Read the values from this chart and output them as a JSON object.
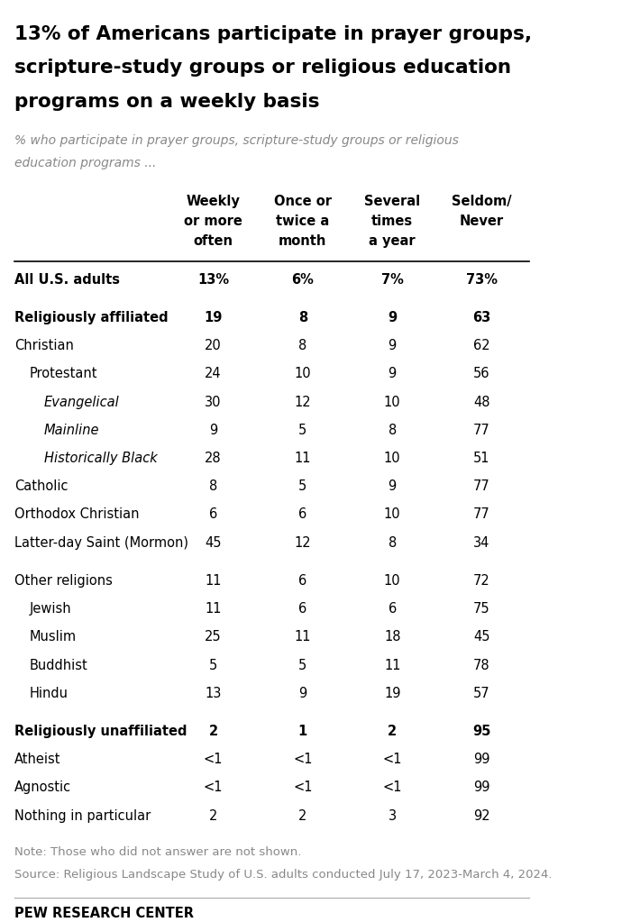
{
  "title": "13% of Americans participate in prayer groups,\nscripture-study groups or religious education\nprograms on a weekly basis",
  "subtitle": "% who participate in prayer groups, scripture-study groups or religious\neducation programs ...",
  "col_headers": [
    "Weekly\nor more\noften",
    "Once or\ntwice a\nmonth",
    "Several\ntimes\na year",
    "Seldom/\nNever"
  ],
  "rows": [
    {
      "label": "All U.S. adults",
      "style": "bold_special",
      "indent": 0,
      "vals": [
        "13%",
        "6%",
        "7%",
        "73%"
      ]
    },
    {
      "label": "",
      "style": "spacer",
      "indent": 0,
      "vals": [
        "",
        "",
        "",
        ""
      ]
    },
    {
      "label": "Religiously affiliated",
      "style": "bold",
      "indent": 0,
      "vals": [
        "19",
        "8",
        "9",
        "63"
      ]
    },
    {
      "label": "Christian",
      "style": "normal",
      "indent": 0,
      "vals": [
        "20",
        "8",
        "9",
        "62"
      ]
    },
    {
      "label": "Protestant",
      "style": "normal",
      "indent": 1,
      "vals": [
        "24",
        "10",
        "9",
        "56"
      ]
    },
    {
      "label": "Evangelical",
      "style": "italic",
      "indent": 2,
      "vals": [
        "30",
        "12",
        "10",
        "48"
      ]
    },
    {
      "label": "Mainline",
      "style": "italic",
      "indent": 2,
      "vals": [
        "9",
        "5",
        "8",
        "77"
      ]
    },
    {
      "label": "Historically Black",
      "style": "italic",
      "indent": 2,
      "vals": [
        "28",
        "11",
        "10",
        "51"
      ]
    },
    {
      "label": "Catholic",
      "style": "normal",
      "indent": 0,
      "vals": [
        "8",
        "5",
        "9",
        "77"
      ]
    },
    {
      "label": "Orthodox Christian",
      "style": "normal",
      "indent": 0,
      "vals": [
        "6",
        "6",
        "10",
        "77"
      ]
    },
    {
      "label": "Latter-day Saint (Mormon)",
      "style": "normal",
      "indent": 0,
      "vals": [
        "45",
        "12",
        "8",
        "34"
      ]
    },
    {
      "label": "",
      "style": "spacer",
      "indent": 0,
      "vals": [
        "",
        "",
        "",
        ""
      ]
    },
    {
      "label": "Other religions",
      "style": "normal",
      "indent": 0,
      "vals": [
        "11",
        "6",
        "10",
        "72"
      ]
    },
    {
      "label": "Jewish",
      "style": "normal",
      "indent": 1,
      "vals": [
        "11",
        "6",
        "6",
        "75"
      ]
    },
    {
      "label": "Muslim",
      "style": "normal",
      "indent": 1,
      "vals": [
        "25",
        "11",
        "18",
        "45"
      ]
    },
    {
      "label": "Buddhist",
      "style": "normal",
      "indent": 1,
      "vals": [
        "5",
        "5",
        "11",
        "78"
      ]
    },
    {
      "label": "Hindu",
      "style": "normal",
      "indent": 1,
      "vals": [
        "13",
        "9",
        "19",
        "57"
      ]
    },
    {
      "label": "",
      "style": "spacer",
      "indent": 0,
      "vals": [
        "",
        "",
        "",
        ""
      ]
    },
    {
      "label": "Religiously unaffiliated",
      "style": "bold",
      "indent": 0,
      "vals": [
        "2",
        "1",
        "2",
        "95"
      ]
    },
    {
      "label": "Atheist",
      "style": "normal",
      "indent": 0,
      "vals": [
        "<1",
        "<1",
        "<1",
        "99"
      ]
    },
    {
      "label": "Agnostic",
      "style": "normal",
      "indent": 0,
      "vals": [
        "<1",
        "<1",
        "<1",
        "99"
      ]
    },
    {
      "label": "Nothing in particular",
      "style": "normal",
      "indent": 0,
      "vals": [
        "2",
        "2",
        "3",
        "92"
      ]
    }
  ],
  "note": "Note: Those who did not answer are not shown.",
  "source": "Source: Religious Landscape Study of U.S. adults conducted July 17, 2023-March 4, 2024.",
  "footer": "PEW RESEARCH CENTER",
  "bg_color": "#FFFFFF",
  "text_color": "#000000",
  "gray_color": "#888888",
  "header_line_color": "#000000",
  "title_fontsize": 15.5,
  "subtitle_fontsize": 10,
  "table_fontsize": 10.5,
  "note_fontsize": 9.5,
  "footer_fontsize": 10.5
}
